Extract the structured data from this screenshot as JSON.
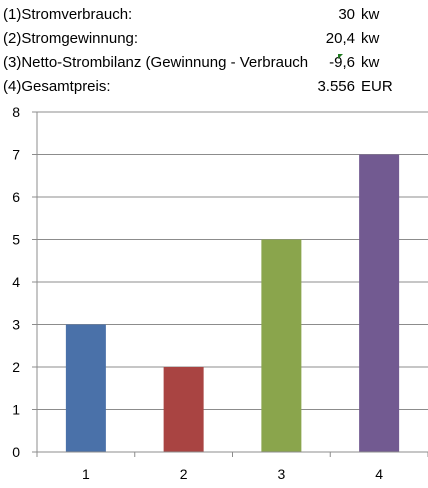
{
  "table": {
    "rows": [
      {
        "label": "(1)Stromverbrauch:",
        "value": "30",
        "unit": "kw"
      },
      {
        "label": "(2)Stromgewinnung:",
        "value": "20,4",
        "unit": "kw"
      },
      {
        "label": "(3)Netto-Strombilanz (Gewinnung - Verbrauch",
        "value": "-9,6",
        "unit": "kw"
      },
      {
        "label": "(4)Gesamtpreis:",
        "value": "3.556",
        "unit": "EUR"
      }
    ]
  },
  "chart_data": {
    "type": "bar",
    "categories": [
      "1",
      "2",
      "3",
      "4"
    ],
    "values": [
      3,
      2,
      5,
      7
    ],
    "colors": [
      "#4a71a9",
      "#a94442",
      "#8aa54c",
      "#725a91"
    ],
    "ylim": [
      0,
      8
    ],
    "yticks": [
      "0",
      "1",
      "2",
      "3",
      "4",
      "5",
      "6",
      "7",
      "8"
    ],
    "grid": true,
    "title": "",
    "xlabel": "",
    "ylabel": ""
  }
}
